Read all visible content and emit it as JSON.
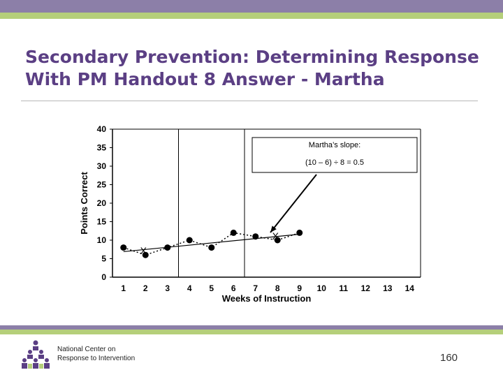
{
  "slide": {
    "title_line1": "Secondary Prevention: Determining Response",
    "title_line2": "With PM Handout 8 Answer - Martha",
    "org_line1": "National Center on",
    "org_line2": "Response to Intervention",
    "page_number": "160"
  },
  "chart_data": {
    "type": "line",
    "xlabel": "Weeks of Instruction",
    "ylabel": "Points Correct",
    "x": [
      1,
      2,
      3,
      4,
      5,
      6,
      7,
      8,
      9,
      10,
      11,
      12,
      13,
      14
    ],
    "x_ticks": [
      "1",
      "2",
      "3",
      "4",
      "5",
      "6",
      "7",
      "8",
      "9",
      "10",
      "11",
      "12",
      "13",
      "14"
    ],
    "y_ticks": [
      "0",
      "5",
      "10",
      "15",
      "20",
      "25",
      "30",
      "35",
      "40"
    ],
    "ylim": [
      0,
      40
    ],
    "series": [
      {
        "values": [
          8,
          6,
          8,
          10,
          8,
          12,
          11,
          10,
          12
        ],
        "x": [
          1,
          2,
          3,
          4,
          5,
          6,
          7,
          8,
          9
        ]
      }
    ],
    "trend_line": {
      "x": [
        1,
        9
      ],
      "y": [
        6.9,
        11.6
      ]
    },
    "x_markers": [
      {
        "x": 2,
        "y": 6,
        "label": "X"
      },
      {
        "x": 8,
        "y": 10,
        "label": "X"
      }
    ],
    "phase_lines_x": [
      3.5,
      6.5
    ],
    "annotation": {
      "line1": "Martha’s slope:",
      "line2": "(10 – 6) ÷ 8 = 0.5"
    },
    "grid": false
  }
}
